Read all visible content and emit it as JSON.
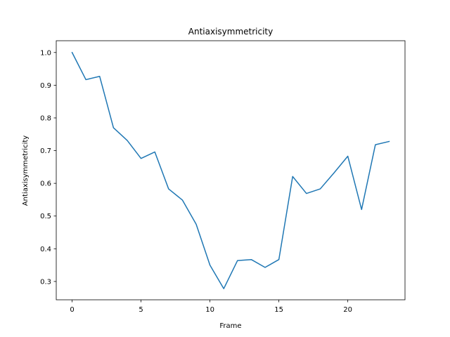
{
  "chart_data": {
    "type": "line",
    "title": "Antiaxisymmetricity",
    "xlabel": "Frame",
    "ylabel": "Antiaxisymmetricity",
    "xlim": [
      -1.15,
      24.15
    ],
    "ylim": [
      0.244,
      1.036
    ],
    "grid": false,
    "x_ticks": [
      0,
      5,
      10,
      15,
      20
    ],
    "y_ticks": [
      0.3,
      0.4,
      0.5,
      0.6,
      0.7,
      0.8,
      0.9,
      1.0
    ],
    "y_tick_labels": [
      "0.3",
      "0.4",
      "0.5",
      "0.6",
      "0.7",
      "0.8",
      "0.9",
      "1.0"
    ],
    "series": [
      {
        "color": "#1f77b4",
        "x": [
          0,
          1,
          2,
          3,
          4,
          5,
          6,
          7,
          8,
          9,
          10,
          11,
          12,
          13,
          14,
          15,
          16,
          17,
          18,
          19,
          20,
          21,
          22,
          23
        ],
        "values": [
          1.0,
          0.917,
          0.927,
          0.77,
          0.731,
          0.676,
          0.696,
          0.583,
          0.549,
          0.475,
          0.35,
          0.278,
          0.364,
          0.367,
          0.343,
          0.367,
          0.621,
          0.569,
          0.583,
          0.632,
          0.683,
          0.52,
          0.718,
          0.728
        ]
      }
    ]
  }
}
